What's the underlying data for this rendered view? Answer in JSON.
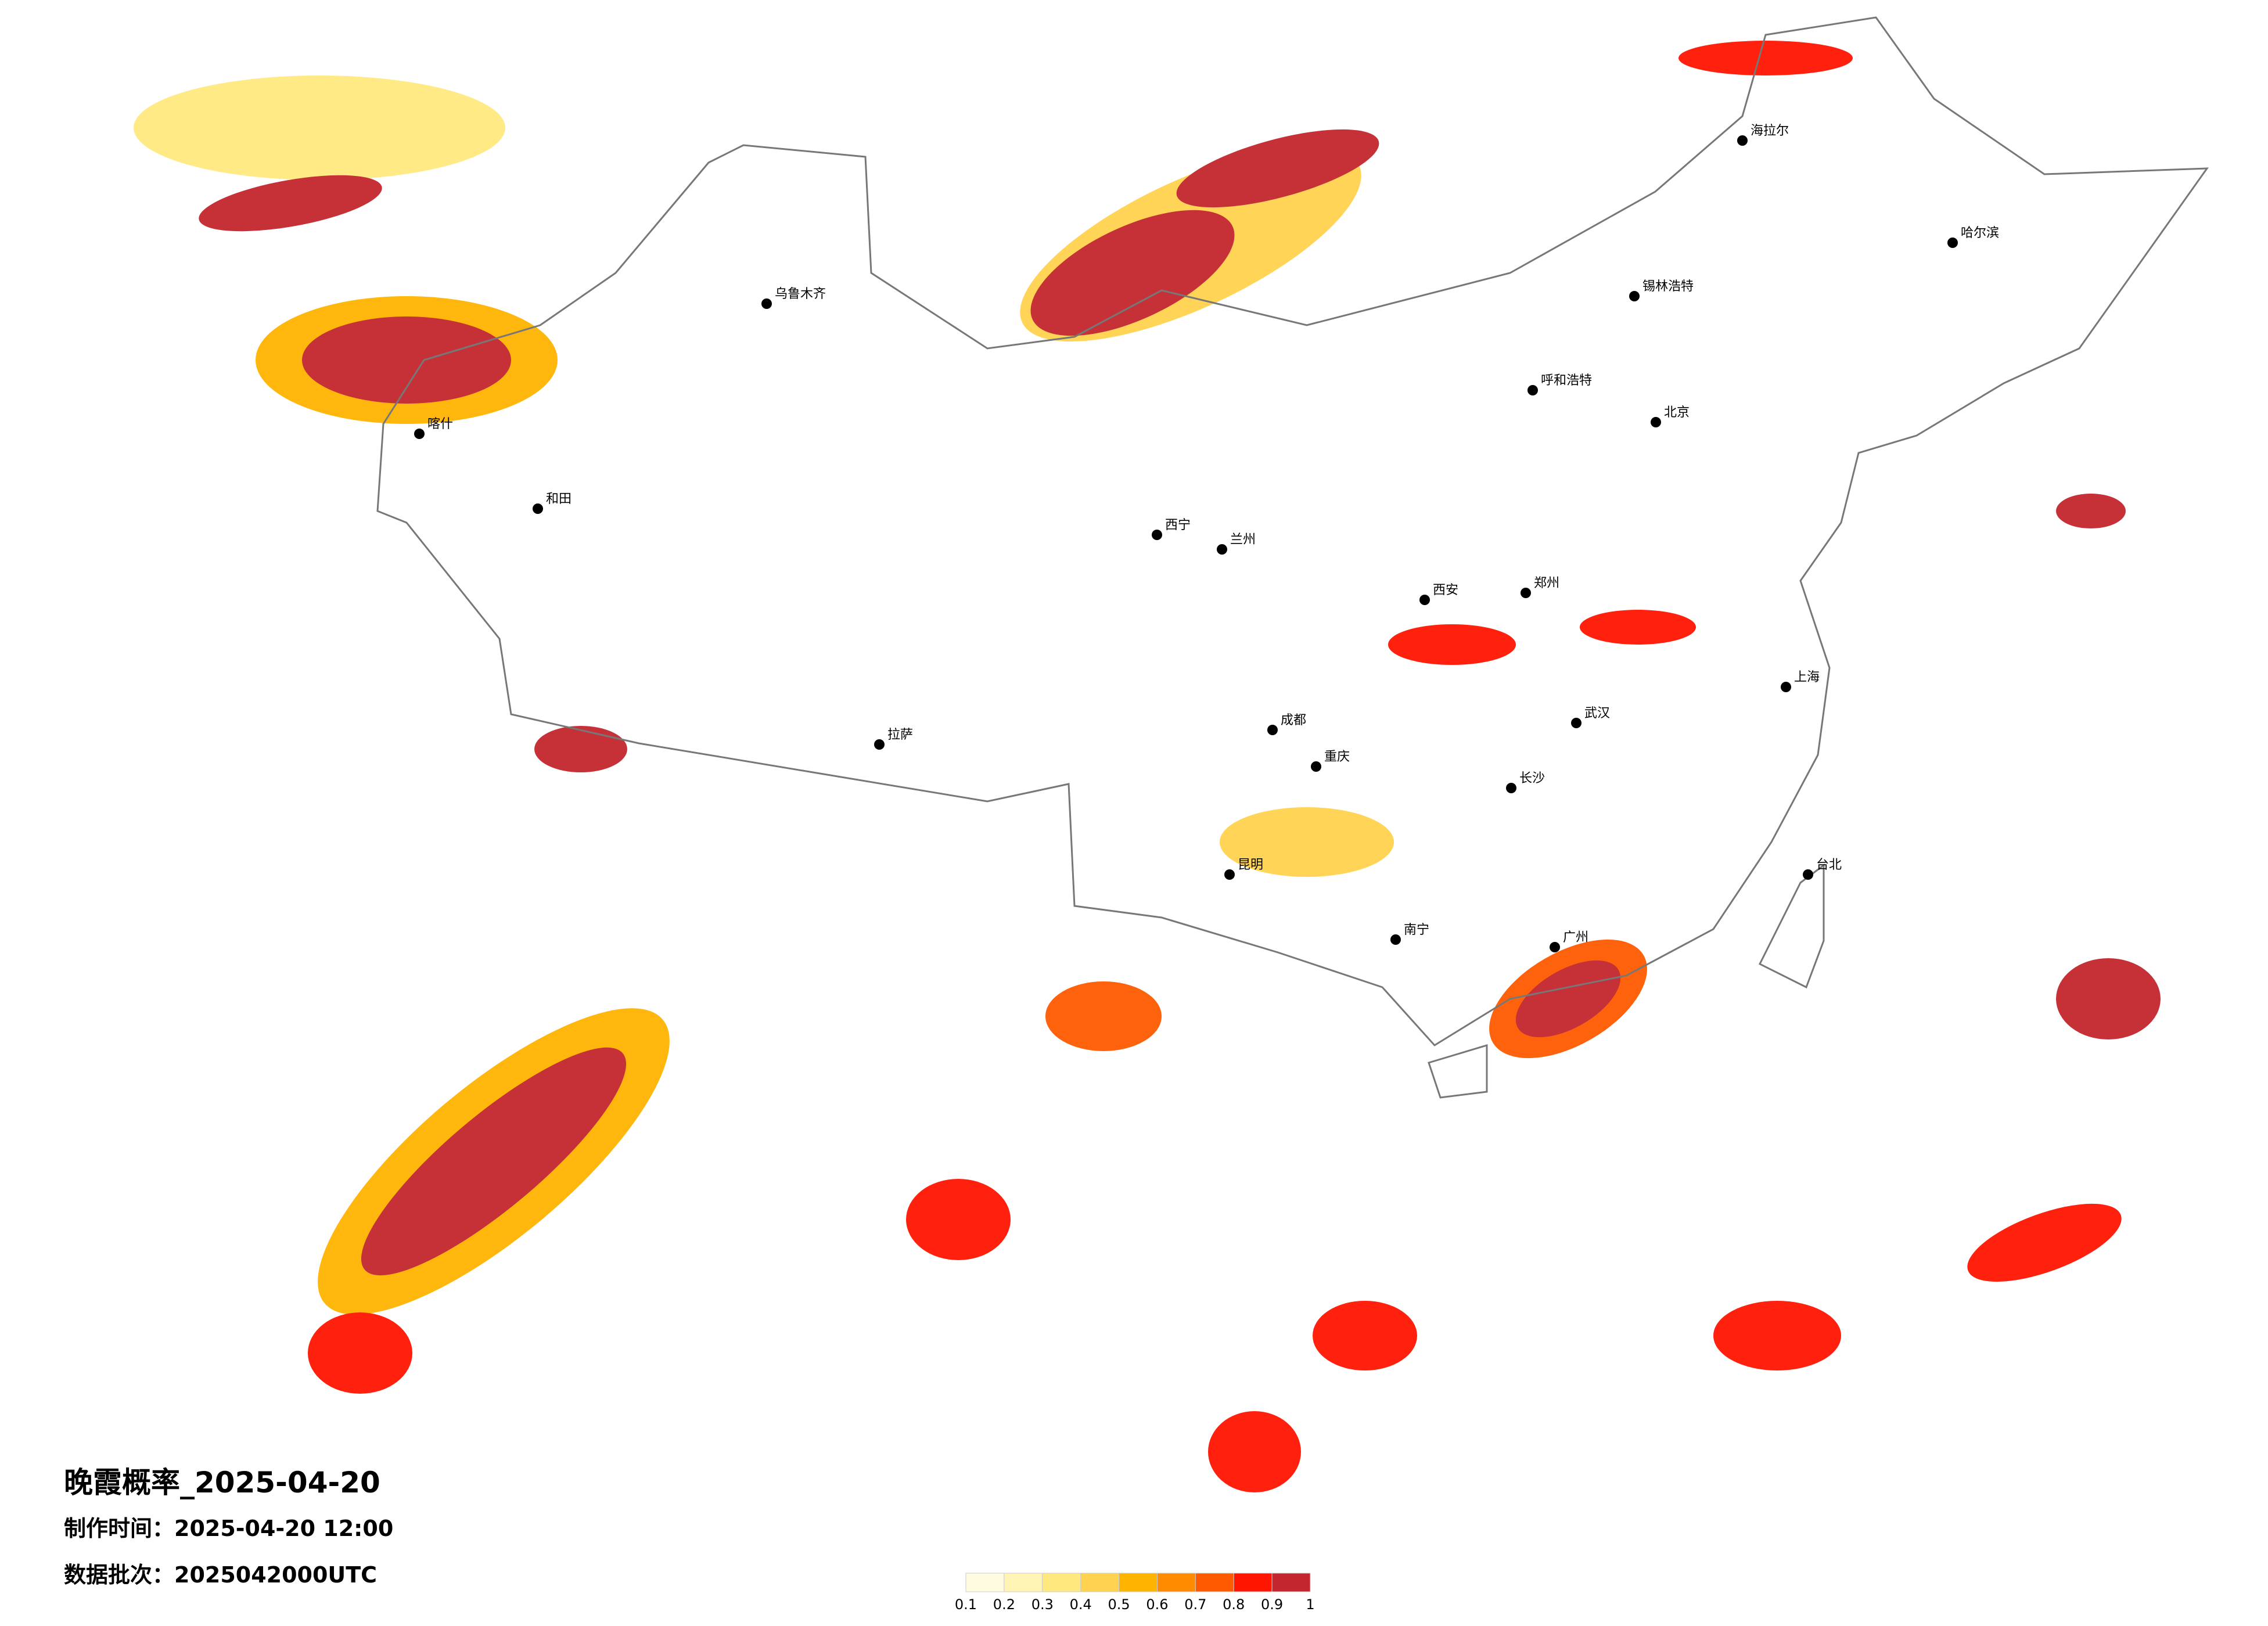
{
  "map": {
    "title": "晚霞概率_2025-04-20",
    "production_time": "制作时间：2025-04-20 12:00",
    "data_batch": "数据批次：2025042000UTC",
    "colorbar": {
      "ticks": [
        0.1,
        0.2,
        0.3,
        0.4,
        0.5,
        0.6,
        0.7,
        0.8,
        0.9,
        1
      ],
      "colors": [
        "#fffbe0",
        "#fff4b3",
        "#ffe97f",
        "#ffd24f",
        "#ffb400",
        "#ff8c00",
        "#ff5a00",
        "#ff1500",
        "#c3262e"
      ]
    },
    "cities": [
      "北京",
      "上海",
      "广州",
      "成都",
      "重庆",
      "武汉",
      "西安",
      "乌鲁木齐",
      "拉萨",
      "哈尔滨",
      "呼和浩特",
      "昆明",
      "南宁",
      "长沙",
      "郑州",
      "兰州",
      "西宁",
      "台北",
      "喀什",
      "和田",
      "海拉尔",
      "锡林浩特"
    ]
  }
}
